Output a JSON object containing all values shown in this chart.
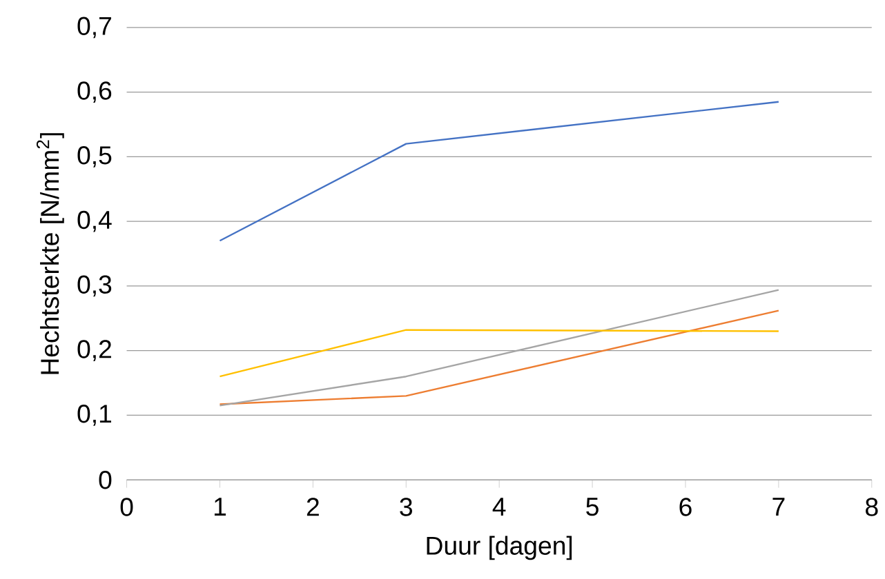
{
  "chart_data": {
    "type": "line",
    "xlabel": "Duur [dagen]",
    "ylabel": "Hechtsterkte [N/mm$^{2}$]",
    "xlim": [
      0,
      8
    ],
    "xticks": [
      0,
      1,
      2,
      3,
      4,
      5,
      6,
      7,
      8
    ],
    "ylim": [
      0,
      0.7
    ],
    "yticks": [
      {
        "value": 0,
        "label": "0"
      },
      {
        "value": 0.1,
        "label": "0,1"
      },
      {
        "value": 0.2,
        "label": "0,2"
      },
      {
        "value": 0.3,
        "label": "0,3"
      },
      {
        "value": 0.4,
        "label": "0,4"
      },
      {
        "value": 0.5,
        "label": "0,5"
      },
      {
        "value": 0.6,
        "label": "0,6"
      },
      {
        "value": 0.7,
        "label": "0,7"
      }
    ],
    "grid": "y",
    "marker": "none",
    "line_style": "solid",
    "series": [
      {
        "color": "#4472c4",
        "x": [
          1,
          3,
          7
        ],
        "values": [
          0.37,
          0.52,
          0.585
        ]
      },
      {
        "color": "#ed7d31",
        "x": [
          1,
          3,
          7
        ],
        "values": [
          0.117,
          0.13,
          0.262
        ]
      },
      {
        "color": "#a5a5a5",
        "x": [
          1,
          3,
          7
        ],
        "values": [
          0.115,
          0.16,
          0.294
        ]
      },
      {
        "color": "#ffc000",
        "x": [
          1,
          3,
          7
        ],
        "values": [
          0.16,
          0.232,
          0.23
        ]
      }
    ]
  }
}
